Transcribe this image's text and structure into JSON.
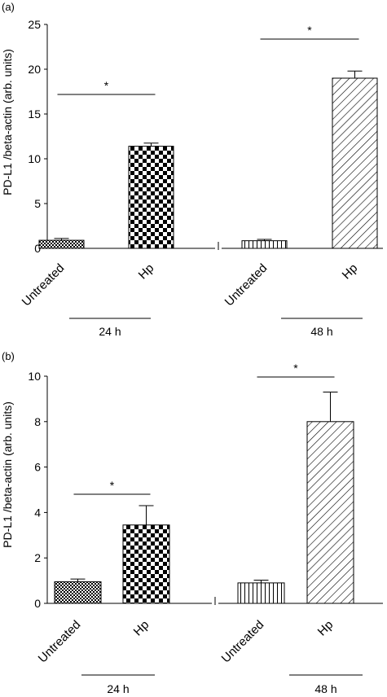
{
  "chart_data": [
    {
      "panel": "(a)",
      "type": "bar",
      "ylabel": "PD-L1 /beta-actin (arb. units)",
      "ylim": [
        0,
        25
      ],
      "yticks": [
        0,
        5,
        10,
        15,
        20,
        25
      ],
      "categories": [
        "Untreated",
        "Hp",
        "Untreated",
        "Hp"
      ],
      "values": [
        0.9,
        11.4,
        0.85,
        19.0
      ],
      "errors": [
        0.2,
        0.35,
        0.15,
        0.8
      ],
      "patterns": [
        "fine-check",
        "check",
        "vstripe",
        "diag"
      ],
      "groups": [
        {
          "label": "24 h",
          "bars": [
            0,
            1
          ]
        },
        {
          "label": "48 h",
          "bars": [
            2,
            3
          ]
        }
      ],
      "significance": [
        {
          "bars": [
            0,
            1
          ],
          "label": "*"
        },
        {
          "bars": [
            2,
            3
          ],
          "label": "*"
        }
      ]
    },
    {
      "panel": "(b)",
      "type": "bar",
      "ylabel": "PD-L1 /beta-actin (arb. units)",
      "ylim": [
        0,
        10
      ],
      "yticks": [
        0,
        2,
        4,
        6,
        8,
        10
      ],
      "categories": [
        "Untreated",
        "Hp",
        "Untreated",
        "Hp"
      ],
      "values": [
        0.95,
        3.45,
        0.9,
        8.0
      ],
      "errors": [
        0.12,
        0.85,
        0.12,
        1.3
      ],
      "patterns": [
        "fine-check",
        "check",
        "vstripe",
        "diag"
      ],
      "groups": [
        {
          "label": "24 h",
          "bars": [
            0,
            1
          ]
        },
        {
          "label": "48 h",
          "bars": [
            2,
            3
          ]
        }
      ],
      "significance": [
        {
          "bars": [
            0,
            1
          ],
          "label": "*"
        },
        {
          "bars": [
            2,
            3
          ],
          "label": "*"
        }
      ]
    }
  ]
}
